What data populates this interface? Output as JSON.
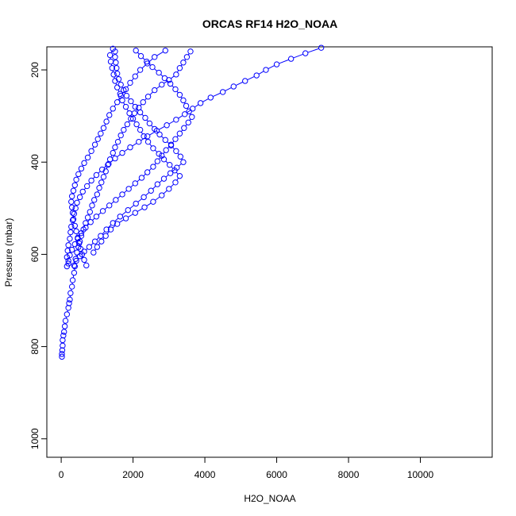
{
  "chart_data": {
    "type": "scatter",
    "title": "ORCAS RF14 H2O_NOAA",
    "xlabel": "H2O_NOAA",
    "ylabel": "Pressure (mbar)",
    "xlim": [
      -400,
      12000
    ],
    "ylim": [
      1040,
      150
    ],
    "y_reversed": true,
    "x_ticks": [
      0,
      2000,
      4000,
      6000,
      8000,
      10000
    ],
    "x_tick_labels": [
      "0",
      "2000",
      "4000",
      "6000",
      "8000",
      "10000"
    ],
    "y_ticks": [
      200,
      400,
      600,
      800,
      1000
    ],
    "y_tick_labels": [
      "200",
      "400",
      "600",
      "800",
      "1000"
    ],
    "grid": false,
    "legend": "none",
    "marker": "open-circle",
    "connect_points": true,
    "color": "#0000ff",
    "series": [
      {
        "points": [
          [
            20,
            822
          ],
          [
            20,
            816
          ],
          [
            30,
            808
          ],
          [
            40,
            798
          ],
          [
            40,
            786
          ],
          [
            60,
            776
          ],
          [
            80,
            768
          ],
          [
            100,
            756
          ],
          [
            120,
            744
          ],
          [
            160,
            730
          ],
          [
            200,
            716
          ],
          [
            220,
            706
          ],
          [
            240,
            698
          ],
          [
            260,
            684
          ],
          [
            300,
            670
          ],
          [
            320,
            656
          ],
          [
            360,
            640
          ],
          [
            380,
            626
          ],
          [
            400,
            610
          ],
          [
            440,
            596
          ],
          [
            480,
            584
          ],
          [
            520,
            572
          ],
          [
            560,
            560
          ],
          [
            620,
            546
          ],
          [
            680,
            532
          ],
          [
            740,
            520
          ],
          [
            800,
            508
          ],
          [
            860,
            494
          ],
          [
            920,
            482
          ],
          [
            1000,
            470
          ],
          [
            1060,
            456
          ],
          [
            1120,
            444
          ],
          [
            1180,
            432
          ],
          [
            1240,
            420
          ],
          [
            1300,
            406
          ],
          [
            1360,
            394
          ],
          [
            1440,
            380
          ],
          [
            1500,
            368
          ],
          [
            1580,
            356
          ],
          [
            1660,
            342
          ],
          [
            1740,
            330
          ],
          [
            1840,
            318
          ],
          [
            1940,
            306
          ],
          [
            2040,
            294
          ],
          [
            2160,
            282
          ],
          [
            2280,
            270
          ],
          [
            2420,
            258
          ],
          [
            2600,
            244
          ],
          [
            2800,
            232
          ],
          [
            3000,
            222
          ],
          [
            3200,
            210
          ],
          [
            3300,
            196
          ],
          [
            3400,
            184
          ],
          [
            3500,
            172
          ],
          [
            3600,
            160
          ]
        ]
      },
      {
        "points": [
          [
            700,
            624
          ],
          [
            640,
            612
          ],
          [
            580,
            600
          ],
          [
            540,
            588
          ],
          [
            500,
            576
          ],
          [
            460,
            564
          ],
          [
            420,
            550
          ],
          [
            380,
            538
          ],
          [
            340,
            524
          ],
          [
            320,
            510
          ],
          [
            300,
            498
          ],
          [
            280,
            486
          ],
          [
            300,
            474
          ],
          [
            340,
            462
          ],
          [
            380,
            450
          ],
          [
            420,
            438
          ],
          [
            480,
            426
          ],
          [
            560,
            414
          ],
          [
            640,
            402
          ],
          [
            740,
            390
          ],
          [
            840,
            376
          ],
          [
            940,
            362
          ],
          [
            1020,
            350
          ],
          [
            1100,
            338
          ],
          [
            1180,
            326
          ],
          [
            1260,
            312
          ],
          [
            1340,
            298
          ],
          [
            1440,
            284
          ],
          [
            1560,
            270
          ],
          [
            1660,
            256
          ],
          [
            1800,
            242
          ],
          [
            1920,
            228
          ],
          [
            2060,
            214
          ],
          [
            2200,
            200
          ],
          [
            2400,
            186
          ],
          [
            2600,
            172
          ],
          [
            2900,
            158
          ]
        ]
      },
      {
        "points": [
          [
            900,
            596
          ],
          [
            1000,
            584
          ],
          [
            1120,
            572
          ],
          [
            1240,
            560
          ],
          [
            1380,
            546
          ],
          [
            1560,
            534
          ],
          [
            1800,
            522
          ],
          [
            2060,
            510
          ],
          [
            2320,
            498
          ],
          [
            2560,
            486
          ],
          [
            2800,
            472
          ],
          [
            3000,
            458
          ],
          [
            3180,
            444
          ],
          [
            3300,
            430
          ],
          [
            3160,
            418
          ],
          [
            3020,
            406
          ],
          [
            2860,
            394
          ],
          [
            2720,
            382
          ],
          [
            2560,
            370
          ],
          [
            2420,
            356
          ],
          [
            2300,
            344
          ],
          [
            2200,
            330
          ],
          [
            2100,
            318
          ],
          [
            2000,
            306
          ],
          [
            1900,
            294
          ],
          [
            1800,
            280
          ],
          [
            1700,
            266
          ],
          [
            1640,
            252
          ],
          [
            1560,
            238
          ],
          [
            1500,
            224
          ],
          [
            1460,
            210
          ],
          [
            1420,
            196
          ],
          [
            1380,
            182
          ],
          [
            1360,
            168
          ],
          [
            1440,
            154
          ]
        ]
      },
      {
        "points": [
          [
            200,
            620
          ],
          [
            160,
            606
          ],
          [
            180,
            592
          ],
          [
            200,
            580
          ],
          [
            240,
            566
          ],
          [
            260,
            552
          ],
          [
            280,
            540
          ],
          [
            320,
            526
          ],
          [
            360,
            512
          ],
          [
            400,
            500
          ],
          [
            440,
            488
          ],
          [
            520,
            476
          ],
          [
            600,
            464
          ],
          [
            720,
            452
          ],
          [
            840,
            440
          ],
          [
            980,
            428
          ],
          [
            1140,
            416
          ],
          [
            1320,
            404
          ],
          [
            1500,
            392
          ],
          [
            1700,
            380
          ],
          [
            1920,
            368
          ],
          [
            2160,
            356
          ],
          [
            2400,
            344
          ],
          [
            2660,
            332
          ],
          [
            2940,
            320
          ],
          [
            3200,
            308
          ],
          [
            3440,
            296
          ],
          [
            3660,
            284
          ],
          [
            3880,
            272
          ],
          [
            4160,
            260
          ],
          [
            4500,
            248
          ],
          [
            4800,
            236
          ],
          [
            5120,
            224
          ],
          [
            5440,
            212
          ],
          [
            5700,
            200
          ],
          [
            6000,
            188
          ],
          [
            6400,
            176
          ],
          [
            6800,
            164
          ],
          [
            7240,
            152
          ]
        ]
      },
      {
        "points": [
          [
            160,
            626
          ],
          [
            200,
            614
          ],
          [
            240,
            602
          ],
          [
            300,
            590
          ],
          [
            380,
            578
          ],
          [
            460,
            566
          ],
          [
            560,
            554
          ],
          [
            680,
            542
          ],
          [
            820,
            530
          ],
          [
            980,
            518
          ],
          [
            1160,
            506
          ],
          [
            1340,
            494
          ],
          [
            1520,
            482
          ],
          [
            1700,
            470
          ],
          [
            1880,
            458
          ],
          [
            2060,
            446
          ],
          [
            2240,
            434
          ],
          [
            2400,
            422
          ],
          [
            2560,
            410
          ],
          [
            2680,
            398
          ],
          [
            2800,
            386
          ],
          [
            2920,
            374
          ],
          [
            3060,
            362
          ],
          [
            3180,
            350
          ],
          [
            3300,
            338
          ],
          [
            3420,
            326
          ],
          [
            3540,
            314
          ],
          [
            3640,
            302
          ],
          [
            3560,
            290
          ],
          [
            3480,
            278
          ],
          [
            3400,
            266
          ],
          [
            3300,
            254
          ],
          [
            3180,
            242
          ],
          [
            3040,
            230
          ],
          [
            2880,
            218
          ],
          [
            2720,
            206
          ],
          [
            2540,
            194
          ],
          [
            2380,
            182
          ],
          [
            2220,
            170
          ],
          [
            2080,
            158
          ]
        ]
      },
      {
        "points": [
          [
            360,
            624
          ],
          [
            420,
            614
          ],
          [
            520,
            604
          ],
          [
            640,
            594
          ],
          [
            780,
            584
          ],
          [
            940,
            572
          ],
          [
            1100,
            560
          ],
          [
            1260,
            546
          ],
          [
            1440,
            532
          ],
          [
            1640,
            518
          ],
          [
            1860,
            504
          ],
          [
            2080,
            490
          ],
          [
            2300,
            476
          ],
          [
            2500,
            462
          ],
          [
            2680,
            448
          ],
          [
            2860,
            436
          ],
          [
            3040,
            424
          ],
          [
            3220,
            412
          ],
          [
            3400,
            400
          ],
          [
            3320,
            388
          ],
          [
            3200,
            376
          ],
          [
            3060,
            364
          ],
          [
            2900,
            352
          ],
          [
            2740,
            340
          ],
          [
            2600,
            328
          ],
          [
            2460,
            316
          ],
          [
            2340,
            304
          ],
          [
            2200,
            292
          ],
          [
            2060,
            280
          ],
          [
            1940,
            268
          ],
          [
            1820,
            256
          ],
          [
            1740,
            244
          ],
          [
            1660,
            232
          ],
          [
            1600,
            220
          ],
          [
            1560,
            208
          ],
          [
            1540,
            196
          ],
          [
            1520,
            184
          ],
          [
            1500,
            172
          ],
          [
            1500,
            160
          ]
        ]
      }
    ]
  }
}
